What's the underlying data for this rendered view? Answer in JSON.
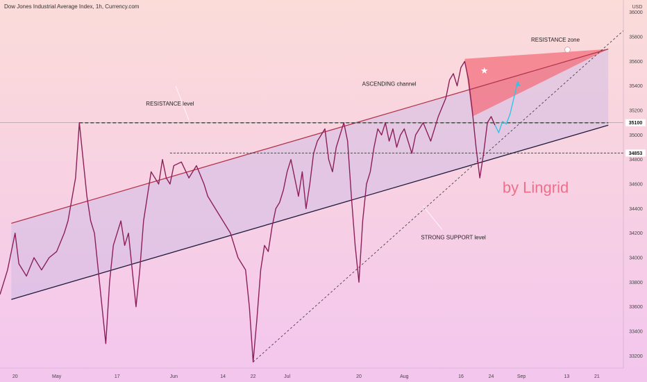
{
  "header": {
    "title": "Dow Jones Industrial Average Index, 1h, Currency.com"
  },
  "colors": {
    "candle": "#8a1f5a",
    "channel_upper": "#b3344c",
    "channel_lower": "#1f1a3a",
    "resistance_zone_fill": "#f36f7c",
    "projection": "#2ec5e6",
    "watermark": "#ee6f8c"
  },
  "chart_data": {
    "type": "line",
    "title": "Dow Jones Industrial Average Index, 1h, Currency.com",
    "currency": "USD",
    "ylim": [
      33100,
      36100
    ],
    "y_ticks": [
      33200,
      33400,
      33600,
      33800,
      34000,
      34200,
      34400,
      34600,
      34800,
      35000,
      35200,
      35400,
      35600,
      35800,
      36000
    ],
    "x_ticks": [
      {
        "label": "20",
        "day": -11
      },
      {
        "label": "May",
        "day": 0
      },
      {
        "label": "17",
        "day": 16
      },
      {
        "label": "Jun",
        "day": 31
      },
      {
        "label": "14",
        "day": 44
      },
      {
        "label": "22",
        "day": 52
      },
      {
        "label": "Jul",
        "day": 61
      },
      {
        "label": "20",
        "day": 80
      },
      {
        "label": "Aug",
        "day": 92
      },
      {
        "label": "16",
        "day": 107
      },
      {
        "label": "24",
        "day": 115
      },
      {
        "label": "Sep",
        "day": 123
      },
      {
        "label": "13",
        "day": 135
      },
      {
        "label": "21",
        "day": 143
      }
    ],
    "x_range_days": [
      -15,
      150
    ],
    "series": [
      {
        "points": [
          [
            -15,
            33700
          ],
          [
            -13,
            33900
          ],
          [
            -11,
            34200
          ],
          [
            -10,
            33950
          ],
          [
            -8,
            33850
          ],
          [
            -6,
            34000
          ],
          [
            -4,
            33900
          ],
          [
            -2,
            34000
          ],
          [
            0,
            34050
          ],
          [
            2,
            34200
          ],
          [
            3,
            34300
          ],
          [
            5,
            34650
          ],
          [
            6,
            35100
          ],
          [
            7,
            34800
          ],
          [
            8,
            34500
          ],
          [
            9,
            34300
          ],
          [
            10,
            34200
          ],
          [
            11,
            33900
          ],
          [
            12,
            33600
          ],
          [
            13,
            33300
          ],
          [
            14,
            33800
          ],
          [
            15,
            34100
          ],
          [
            16,
            34200
          ],
          [
            17,
            34300
          ],
          [
            18,
            34100
          ],
          [
            19,
            34200
          ],
          [
            20,
            33900
          ],
          [
            21,
            33600
          ],
          [
            22,
            33900
          ],
          [
            23,
            34300
          ],
          [
            24,
            34500
          ],
          [
            25,
            34700
          ],
          [
            26,
            34650
          ],
          [
            27,
            34600
          ],
          [
            28,
            34800
          ],
          [
            29,
            34650
          ],
          [
            30,
            34600
          ],
          [
            31,
            34750
          ],
          [
            33,
            34780
          ],
          [
            35,
            34650
          ],
          [
            37,
            34750
          ],
          [
            39,
            34600
          ],
          [
            40,
            34500
          ],
          [
            42,
            34400
          ],
          [
            44,
            34300
          ],
          [
            46,
            34200
          ],
          [
            48,
            34000
          ],
          [
            50,
            33900
          ],
          [
            51,
            33600
          ],
          [
            52,
            33150
          ],
          [
            53,
            33500
          ],
          [
            54,
            33900
          ],
          [
            55,
            34100
          ],
          [
            56,
            34050
          ],
          [
            57,
            34250
          ],
          [
            58,
            34400
          ],
          [
            59,
            34450
          ],
          [
            60,
            34550
          ],
          [
            61,
            34700
          ],
          [
            62,
            34800
          ],
          [
            63,
            34650
          ],
          [
            64,
            34500
          ],
          [
            65,
            34700
          ],
          [
            66,
            34400
          ],
          [
            67,
            34600
          ],
          [
            68,
            34850
          ],
          [
            69,
            34950
          ],
          [
            70,
            35000
          ],
          [
            71,
            35050
          ],
          [
            72,
            34800
          ],
          [
            73,
            34700
          ],
          [
            74,
            34900
          ],
          [
            75,
            35000
          ],
          [
            76,
            35100
          ],
          [
            77,
            34950
          ],
          [
            78,
            34500
          ],
          [
            79,
            34100
          ],
          [
            80,
            33800
          ],
          [
            81,
            34300
          ],
          [
            82,
            34600
          ],
          [
            83,
            34700
          ],
          [
            84,
            34900
          ],
          [
            85,
            35050
          ],
          [
            86,
            35000
          ],
          [
            87,
            35100
          ],
          [
            88,
            34950
          ],
          [
            89,
            35050
          ],
          [
            90,
            34900
          ],
          [
            91,
            35000
          ],
          [
            92,
            35050
          ],
          [
            94,
            34850
          ],
          [
            95,
            35000
          ],
          [
            97,
            35100
          ],
          [
            99,
            34950
          ],
          [
            101,
            35150
          ],
          [
            103,
            35300
          ],
          [
            104,
            35450
          ],
          [
            105,
            35500
          ],
          [
            106,
            35400
          ],
          [
            107,
            35550
          ],
          [
            108,
            35600
          ],
          [
            109,
            35450
          ],
          [
            110,
            35200
          ],
          [
            111,
            34900
          ],
          [
            112,
            34650
          ],
          [
            113,
            34850
          ],
          [
            114,
            35100
          ],
          [
            115,
            35150
          ],
          [
            116,
            35080
          ]
        ]
      },
      {
        "name": "projection",
        "points": [
          [
            116,
            35080
          ],
          [
            117,
            35020
          ],
          [
            118,
            35110
          ],
          [
            119,
            35090
          ],
          [
            120,
            35170
          ],
          [
            121,
            35300
          ],
          [
            122,
            35430
          ]
        ]
      }
    ],
    "lines": [
      {
        "from": [
          -12,
          34280
        ],
        "to": [
          146,
          35700
        ]
      },
      {
        "from": [
          -12,
          33660
        ],
        "to": [
          146,
          35080
        ]
      },
      {
        "from": [
          6,
          35100
        ],
        "to": [
          146,
          35100
        ]
      },
      {
        "from": [
          30,
          34853
        ],
        "to": [
          150,
          34853
        ]
      },
      {
        "from": [
          52,
          33150
        ],
        "to": [
          150,
          35850
        ]
      }
    ],
    "zones": [
      {
        "points": [
          [
            108,
            35620
          ],
          [
            146,
            35700
          ],
          [
            110,
            35150
          ]
        ]
      }
    ],
    "annotations": [
      {
        "text": "RESISTANCE zone",
        "day": 132,
        "value": 35760
      },
      {
        "text": "RESISTANCE level",
        "day": 30,
        "value": 35240
      },
      {
        "text": "ASCENDING channel",
        "day": 88,
        "value": 35400
      },
      {
        "text": "STRONG SUPPORT level",
        "day": 105,
        "value": 34150
      },
      {
        "text": "by Lingrid",
        "day": 118,
        "value": 34530
      }
    ],
    "price_labels": [
      35100,
      34853
    ]
  }
}
